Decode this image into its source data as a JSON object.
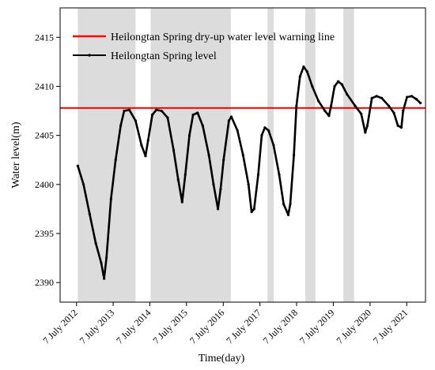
{
  "chart_data": {
    "type": "line",
    "title": "",
    "xlabel": "Time(day)",
    "ylabel": "Water level(m)",
    "x_domain": [
      "2012-01-26",
      "2022-01-10"
    ],
    "ylim": [
      2388,
      2418
    ],
    "yticks": [
      2390,
      2395,
      2400,
      2405,
      2410,
      2415
    ],
    "xticks": [
      {
        "date": "2012-07-07",
        "label": "7 July 2012"
      },
      {
        "date": "2013-07-07",
        "label": "7 July 2013"
      },
      {
        "date": "2014-07-07",
        "label": "7 July 2014"
      },
      {
        "date": "2015-07-07",
        "label": "7 July 2015"
      },
      {
        "date": "2016-07-07",
        "label": "7 July 2016"
      },
      {
        "date": "2017-07-07",
        "label": "7 July 2017"
      },
      {
        "date": "2018-07-07",
        "label": "7 July 2018"
      },
      {
        "date": "2019-07-07",
        "label": "7 July 2019"
      },
      {
        "date": "2020-07-07",
        "label": "7 July 2020"
      },
      {
        "date": "2021-07-07",
        "label": "7 July 2021"
      }
    ],
    "shaded_periods": [
      {
        "start": "2012-07-20",
        "end": "2014-02-15"
      },
      {
        "start": "2014-07-15",
        "end": "2016-09-20"
      },
      {
        "start": "2017-09-20",
        "end": "2017-11-20"
      },
      {
        "start": "2018-10-01",
        "end": "2019-01-10"
      },
      {
        "start": "2019-10-15",
        "end": "2020-01-30"
      }
    ],
    "warning_line": {
      "name": "Heilongtan Spring dry-up water level warning line",
      "value": 2407.8,
      "color": "#ff0000"
    },
    "series": [
      {
        "name": "Heilongtan Spring level",
        "color": "#000000",
        "points": [
          [
            "2012-07-20",
            2401.9
          ],
          [
            "2012-09-15",
            2400.0
          ],
          [
            "2012-11-15",
            2397.0
          ],
          [
            "2013-01-15",
            2394.0
          ],
          [
            "2013-03-10",
            2392.0
          ],
          [
            "2013-04-08",
            2390.4
          ],
          [
            "2013-05-01",
            2392.5
          ],
          [
            "2013-06-15",
            2398.5
          ],
          [
            "2013-08-01",
            2402.5
          ],
          [
            "2013-09-20",
            2406.0
          ],
          [
            "2013-10-25",
            2407.5
          ],
          [
            "2013-12-15",
            2407.6
          ],
          [
            "2014-02-15",
            2406.5
          ],
          [
            "2014-04-15",
            2404.0
          ],
          [
            "2014-05-25",
            2402.9
          ],
          [
            "2014-06-20",
            2404.5
          ],
          [
            "2014-08-01",
            2407.1
          ],
          [
            "2014-09-10",
            2407.6
          ],
          [
            "2014-11-01",
            2407.5
          ],
          [
            "2015-01-01",
            2406.8
          ],
          [
            "2015-03-01",
            2403.5
          ],
          [
            "2015-04-15",
            2400.5
          ],
          [
            "2015-05-25",
            2398.2
          ],
          [
            "2015-06-25",
            2401.0
          ],
          [
            "2015-08-05",
            2405.0
          ],
          [
            "2015-09-10",
            2407.1
          ],
          [
            "2015-10-25",
            2407.3
          ],
          [
            "2015-12-15",
            2406.0
          ],
          [
            "2016-02-15",
            2403.0
          ],
          [
            "2016-04-01",
            2400.0
          ],
          [
            "2016-05-15",
            2397.5
          ],
          [
            "2016-06-10",
            2399.5
          ],
          [
            "2016-07-10",
            2402.5
          ],
          [
            "2016-09-01",
            2406.5
          ],
          [
            "2016-09-25",
            2406.9
          ],
          [
            "2016-11-25",
            2405.5
          ],
          [
            "2017-01-20",
            2403.0
          ],
          [
            "2017-03-15",
            2400.0
          ],
          [
            "2017-04-15",
            2397.2
          ],
          [
            "2017-05-10",
            2397.5
          ],
          [
            "2017-06-20",
            2401.0
          ],
          [
            "2017-07-25",
            2405.0
          ],
          [
            "2017-08-25",
            2405.8
          ],
          [
            "2017-10-01",
            2405.5
          ],
          [
            "2017-11-20",
            2404.0
          ],
          [
            "2018-01-15",
            2401.0
          ],
          [
            "2018-02-28",
            2398.0
          ],
          [
            "2018-04-15",
            2396.9
          ],
          [
            "2018-05-05",
            2398.0
          ],
          [
            "2018-06-10",
            2403.0
          ],
          [
            "2018-07-05",
            2408.0
          ],
          [
            "2018-08-10",
            2411.0
          ],
          [
            "2018-09-15",
            2412.0
          ],
          [
            "2018-10-20",
            2411.5
          ],
          [
            "2018-12-10",
            2410.0
          ],
          [
            "2019-02-10",
            2408.5
          ],
          [
            "2019-04-15",
            2407.5
          ],
          [
            "2019-05-25",
            2407.0
          ],
          [
            "2019-06-15",
            2408.0
          ],
          [
            "2019-07-20",
            2410.0
          ],
          [
            "2019-08-25",
            2410.5
          ],
          [
            "2019-10-01",
            2410.2
          ],
          [
            "2019-11-20",
            2409.2
          ],
          [
            "2020-02-10",
            2408.0
          ],
          [
            "2020-04-10",
            2407.2
          ],
          [
            "2020-05-20",
            2405.3
          ],
          [
            "2020-06-10",
            2406.0
          ],
          [
            "2020-07-25",
            2408.8
          ],
          [
            "2020-09-10",
            2409.0
          ],
          [
            "2020-11-01",
            2408.8
          ],
          [
            "2021-01-10",
            2408.0
          ],
          [
            "2021-03-01",
            2407.3
          ],
          [
            "2021-04-10",
            2406.0
          ],
          [
            "2021-05-15",
            2405.8
          ],
          [
            "2021-06-01",
            2407.5
          ],
          [
            "2021-07-10",
            2408.9
          ],
          [
            "2021-08-25",
            2409.0
          ],
          [
            "2021-10-10",
            2408.7
          ],
          [
            "2021-11-20",
            2408.3
          ]
        ]
      }
    ]
  }
}
